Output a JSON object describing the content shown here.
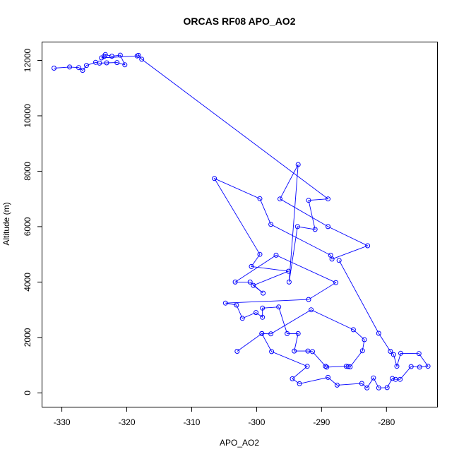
{
  "chart_data": {
    "type": "line",
    "title": "ORCAS RF08 APO_AO2",
    "xlabel": "APO_AO2",
    "ylabel": "Altitude (m)",
    "xlim": [
      -333,
      -272.2
    ],
    "ylim": [
      -500,
      12650
    ],
    "xticks": [
      -330,
      -320,
      -310,
      -300,
      -290,
      -280
    ],
    "yticks": [
      0,
      2000,
      4000,
      6000,
      8000,
      10000,
      12000
    ],
    "grid": false,
    "markers": "open-circle",
    "color": "#0000ff",
    "points": [
      [
        -331.2,
        11720
      ],
      [
        -328.8,
        11760
      ],
      [
        -327.4,
        11740
      ],
      [
        -326.8,
        11640
      ],
      [
        -326.2,
        11820
      ],
      [
        -324.8,
        11930
      ],
      [
        -324.2,
        11900
      ],
      [
        -323.1,
        11910
      ],
      [
        -321.5,
        11920
      ],
      [
        -320.3,
        11840
      ],
      [
        -321.0,
        12190
      ],
      [
        -322.3,
        12150
      ],
      [
        -323.3,
        12210
      ],
      [
        -323.5,
        12140
      ],
      [
        -323.9,
        12090
      ],
      [
        -318.4,
        12160
      ],
      [
        -318.2,
        12180
      ],
      [
        -317.7,
        12040
      ],
      [
        -289.0,
        7000
      ],
      [
        -292.0,
        6950
      ],
      [
        -291.0,
        5900
      ],
      [
        -293.7,
        6000
      ],
      [
        -295.0,
        4000
      ],
      [
        -293.6,
        8240
      ],
      [
        -296.4,
        7000
      ],
      [
        -289.0,
        6000
      ],
      [
        -282.9,
        5310
      ],
      [
        -288.4,
        4830
      ],
      [
        -288.6,
        4970
      ],
      [
        -297.8,
        6080
      ],
      [
        -299.5,
        7010
      ],
      [
        -306.5,
        7740
      ],
      [
        -299.5,
        5000
      ],
      [
        -300.8,
        4560
      ],
      [
        -295.1,
        4390
      ],
      [
        -300.5,
        3880
      ],
      [
        -299.0,
        3600
      ],
      [
        -301.0,
        4000
      ],
      [
        -303.3,
        4000
      ],
      [
        -297.0,
        4970
      ],
      [
        -287.8,
        3980
      ],
      [
        -292.0,
        3370
      ],
      [
        -304.8,
        3240
      ],
      [
        -303.1,
        3170
      ],
      [
        -302.2,
        2690
      ],
      [
        -300.1,
        2900
      ],
      [
        -299.1,
        2730
      ],
      [
        -299.1,
        3060
      ],
      [
        -296.6,
        3100
      ],
      [
        -295.3,
        2140
      ],
      [
        -293.6,
        2140
      ],
      [
        -294.2,
        1510
      ],
      [
        -292.1,
        1510
      ],
      [
        -291.4,
        1490
      ],
      [
        -289.4,
        960
      ],
      [
        -289.2,
        930
      ],
      [
        -286.2,
        960
      ],
      [
        -285.9,
        950
      ],
      [
        -285.6,
        940
      ],
      [
        -283.7,
        1520
      ],
      [
        -283.4,
        1920
      ],
      [
        -285.1,
        2280
      ],
      [
        -291.6,
        3000
      ],
      [
        -297.8,
        2130
      ],
      [
        -299.2,
        2140
      ],
      [
        -303.0,
        1500
      ],
      [
        -299.2,
        2140
      ],
      [
        -297.7,
        1490
      ],
      [
        -292.2,
        960
      ],
      [
        -294.5,
        510
      ],
      [
        -293.4,
        330
      ],
      [
        -289.0,
        560
      ],
      [
        -287.6,
        280
      ],
      [
        -283.8,
        340
      ],
      [
        -283.0,
        180
      ],
      [
        -282.0,
        540
      ],
      [
        -281.2,
        180
      ],
      [
        -279.9,
        190
      ],
      [
        -279.1,
        520
      ],
      [
        -278.6,
        490
      ],
      [
        -277.9,
        490
      ],
      [
        -276.2,
        950
      ],
      [
        -274.9,
        930
      ],
      [
        -273.6,
        960
      ],
      [
        -275.0,
        1420
      ],
      [
        -277.8,
        1430
      ],
      [
        -278.4,
        960
      ],
      [
        -278.9,
        1380
      ],
      [
        -279.4,
        1500
      ],
      [
        -281.2,
        2150
      ],
      [
        -287.3,
        4780
      ]
    ]
  }
}
